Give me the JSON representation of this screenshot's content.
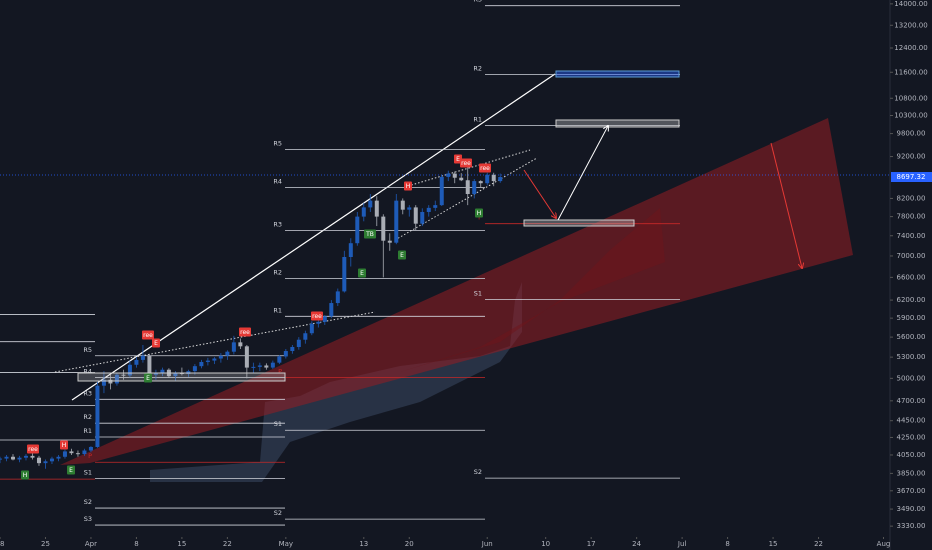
{
  "chart_data": {
    "type": "candlestick",
    "log_scale": true,
    "up_color": "#1e5bb8",
    "down_color": "#a9adb5",
    "xlim": [
      0,
      137
    ],
    "ylim": [
      3250,
      14150
    ],
    "xticks": [
      {
        "value": 0,
        "label": "18"
      },
      {
        "value": 7,
        "label": "25"
      },
      {
        "value": 14,
        "label": "Apr"
      },
      {
        "value": 21,
        "label": "8"
      },
      {
        "value": 28,
        "label": "15"
      },
      {
        "value": 35,
        "label": "22"
      },
      {
        "value": 44,
        "label": "May"
      },
      {
        "value": 56,
        "label": "13"
      },
      {
        "value": 63,
        "label": "20"
      },
      {
        "value": 75,
        "label": "Jun"
      },
      {
        "value": 84,
        "label": "10"
      },
      {
        "value": 91,
        "label": "17"
      },
      {
        "value": 98,
        "label": "24"
      },
      {
        "value": 105,
        "label": "Jul"
      },
      {
        "value": 112,
        "label": "8"
      },
      {
        "value": 119,
        "label": "15"
      },
      {
        "value": 126,
        "label": "22"
      },
      {
        "value": 136,
        "label": "Aug"
      }
    ],
    "yticks": [
      {
        "value": 3330,
        "label": "3330.00"
      },
      {
        "value": 3490,
        "label": "3490.00"
      },
      {
        "value": 3670,
        "label": "3670.00"
      },
      {
        "value": 3850,
        "label": "3850.00"
      },
      {
        "value": 4050,
        "label": "4050.00"
      },
      {
        "value": 4250,
        "label": "4250.00"
      },
      {
        "value": 4450,
        "label": "4450.00"
      },
      {
        "value": 4700,
        "label": "4700.00"
      },
      {
        "value": 5000,
        "label": "5000.00"
      },
      {
        "value": 5300,
        "label": "5300.00"
      },
      {
        "value": 5600,
        "label": "5600.00"
      },
      {
        "value": 5900,
        "label": "5900.00"
      },
      {
        "value": 6200,
        "label": "6200.00"
      },
      {
        "value": 6600,
        "label": "6600.00"
      },
      {
        "value": 7000,
        "label": "7000.00"
      },
      {
        "value": 7400,
        "label": "7400.00"
      },
      {
        "value": 7800,
        "label": "7800.00"
      },
      {
        "value": 8200,
        "label": "8200.00"
      },
      {
        "value": 9200,
        "label": "9200.00"
      },
      {
        "value": 9800,
        "label": "9800.00"
      },
      {
        "value": 10300,
        "label": "10300.00"
      },
      {
        "value": 10800,
        "label": "10800.00"
      },
      {
        "value": 11600,
        "label": "11600.00"
      },
      {
        "value": 12400,
        "label": "12400.00"
      },
      {
        "value": 13200,
        "label": "13200.00"
      },
      {
        "value": 14000,
        "label": "14000.00"
      }
    ],
    "last_price": {
      "value": 8697.32,
      "label": "8697.32",
      "color": "#2962ff"
    },
    "ohlc": [
      [
        4000,
        4030,
        3960,
        4010
      ],
      [
        4010,
        4050,
        3980,
        4030
      ],
      [
        4030,
        4060,
        3990,
        4000
      ],
      [
        4000,
        4040,
        3970,
        4020
      ],
      [
        4020,
        4060,
        3990,
        4040
      ],
      [
        4040,
        4080,
        4000,
        4020
      ],
      [
        4020,
        4040,
        3930,
        3960
      ],
      [
        3960,
        4000,
        3900,
        3980
      ],
      [
        3980,
        4030,
        3950,
        4010
      ],
      [
        4010,
        4050,
        3980,
        4030
      ],
      [
        4030,
        4110,
        4010,
        4090
      ],
      [
        4090,
        4120,
        4050,
        4070
      ],
      [
        4070,
        4100,
        4030,
        4060
      ],
      [
        4060,
        4120,
        4040,
        4100
      ],
      [
        4100,
        4150,
        4080,
        4140
      ],
      [
        4140,
        4950,
        4130,
        4900
      ],
      [
        4900,
        5100,
        4800,
        4980
      ],
      [
        4980,
        5050,
        4850,
        4930
      ],
      [
        4930,
        5080,
        4900,
        5050
      ],
      [
        5050,
        5120,
        4980,
        5040
      ],
      [
        5040,
        5250,
        5010,
        5190
      ],
      [
        5190,
        5300,
        5150,
        5260
      ],
      [
        5260,
        5480,
        5220,
        5320
      ],
      [
        5320,
        5350,
        4990,
        5050
      ],
      [
        5050,
        5120,
        4980,
        5080
      ],
      [
        5080,
        5150,
        5030,
        5120
      ],
      [
        5120,
        5140,
        5010,
        5030
      ],
      [
        5030,
        5100,
        4960,
        5080
      ],
      [
        5080,
        5150,
        5040,
        5060
      ],
      [
        5060,
        5120,
        5020,
        5100
      ],
      [
        5100,
        5200,
        5050,
        5170
      ],
      [
        5170,
        5260,
        5140,
        5230
      ],
      [
        5230,
        5290,
        5180,
        5250
      ],
      [
        5250,
        5300,
        5200,
        5280
      ],
      [
        5280,
        5360,
        5220,
        5320
      ],
      [
        5320,
        5400,
        5260,
        5380
      ],
      [
        5380,
        5620,
        5340,
        5520
      ],
      [
        5520,
        5580,
        5420,
        5460
      ],
      [
        5460,
        5480,
        5000,
        5150
      ],
      [
        5150,
        5220,
        5080,
        5160
      ],
      [
        5160,
        5220,
        5100,
        5180
      ],
      [
        5180,
        5210,
        5120,
        5150
      ],
      [
        5150,
        5250,
        5130,
        5220
      ],
      [
        5220,
        5330,
        5200,
        5310
      ],
      [
        5310,
        5420,
        5280,
        5390
      ],
      [
        5390,
        5480,
        5350,
        5450
      ],
      [
        5450,
        5600,
        5410,
        5560
      ],
      [
        5560,
        5700,
        5500,
        5660
      ],
      [
        5660,
        5850,
        5630,
        5810
      ],
      [
        5810,
        5880,
        5750,
        5840
      ],
      [
        5840,
        5950,
        5790,
        5930
      ],
      [
        5930,
        6200,
        5900,
        6150
      ],
      [
        6150,
        6400,
        6100,
        6350
      ],
      [
        6350,
        7100,
        6330,
        6980
      ],
      [
        6980,
        7350,
        6800,
        7250
      ],
      [
        7250,
        7900,
        7200,
        7800
      ],
      [
        7800,
        8100,
        7700,
        8000
      ],
      [
        8000,
        8300,
        7900,
        8150
      ],
      [
        8150,
        8250,
        7600,
        7800
      ],
      [
        7800,
        7850,
        6600,
        7300
      ],
      [
        7300,
        7450,
        7100,
        7260
      ],
      [
        7260,
        8300,
        7230,
        8150
      ],
      [
        8150,
        8200,
        7850,
        7950
      ],
      [
        7950,
        8050,
        7800,
        8000
      ],
      [
        8000,
        8050,
        7500,
        7650
      ],
      [
        7650,
        7980,
        7600,
        7900
      ],
      [
        7900,
        8050,
        7800,
        7990
      ],
      [
        7990,
        8150,
        7920,
        8050
      ],
      [
        8050,
        8750,
        8030,
        8700
      ],
      [
        8700,
        8850,
        8600,
        8780
      ],
      [
        8780,
        8830,
        8550,
        8680
      ],
      [
        8680,
        8790,
        8600,
        8620
      ],
      [
        8620,
        9100,
        8050,
        8300
      ],
      [
        8300,
        8650,
        8200,
        8600
      ],
      [
        8600,
        8620,
        8450,
        8550
      ],
      [
        8550,
        8800,
        8500,
        8750
      ],
      [
        8750,
        8800,
        8480,
        8600
      ],
      [
        8600,
        8780,
        8560,
        8697.32
      ]
    ],
    "pivot_color": "#d1d4dc",
    "pivot_p_color": "#c62828",
    "pivot_sets": [
      {
        "levels": [
          {
            "value": 5960
          },
          {
            "value": 5530
          },
          {
            "value": 5080
          },
          {
            "value": 4640
          },
          {
            "value": 4220
          },
          {
            "value": 3790
          }
        ]
      },
      {
        "levels": [
          {
            "label": "R5",
            "value": 5320
          },
          {
            "label": "R4",
            "value": 5010
          },
          {
            "label": "R3",
            "value": 4720
          },
          {
            "label": "R2",
            "value": 4420
          },
          {
            "label": "R1",
            "value": 4255
          },
          {
            "label": "P",
            "value": 3970
          },
          {
            "label": "S1",
            "value": 3795
          },
          {
            "label": "S2",
            "value": 3500
          },
          {
            "label": "S3",
            "value": 3340
          }
        ]
      },
      {
        "levels": [
          {
            "label": "R5",
            "value": 9380
          },
          {
            "label": "R4",
            "value": 8450
          },
          {
            "label": "R3",
            "value": 7510
          },
          {
            "label": "R2",
            "value": 6580
          },
          {
            "label": "R1",
            "value": 5930
          },
          {
            "label": "P",
            "value": 5010
          },
          {
            "label": "S1",
            "value": 4335
          },
          {
            "label": "S2",
            "value": 3395
          }
        ]
      },
      {
        "levels": [
          {
            "label": "R3",
            "value": 13930
          },
          {
            "label": "R2",
            "value": 11530
          },
          {
            "label": "R1",
            "value": 10020
          },
          {
            "label": "P",
            "value": 7650
          },
          {
            "label": "S1",
            "value": 6210
          },
          {
            "label": "S2",
            "value": 3800
          }
        ]
      }
    ],
    "markers": [
      {
        "label": "ree",
        "color": "#e53935"
      },
      {
        "label": "H",
        "color": "#2e7d32"
      },
      {
        "label": "H",
        "color": "#e53935"
      },
      {
        "label": "E",
        "color": "#2e7d32"
      },
      {
        "label": "ree",
        "color": "#e53935"
      },
      {
        "label": "E",
        "color": "#e53935"
      },
      {
        "label": "E",
        "color": "#2e7d32"
      },
      {
        "label": "ree",
        "color": "#e53935"
      },
      {
        "label": "ree",
        "color": "#e53935"
      },
      {
        "label": "TB",
        "color": "#2e7d32"
      },
      {
        "label": "E",
        "color": "#2e7d32"
      },
      {
        "label": "H",
        "color": "#e53935"
      },
      {
        "label": "E",
        "color": "#2e7d32"
      },
      {
        "label": "E",
        "color": "#e53935"
      },
      {
        "label": "ree",
        "color": "#e53935"
      },
      {
        "label": "ree",
        "color": "#e53935"
      },
      {
        "label": "H",
        "color": "#2e7d32"
      }
    ]
  }
}
